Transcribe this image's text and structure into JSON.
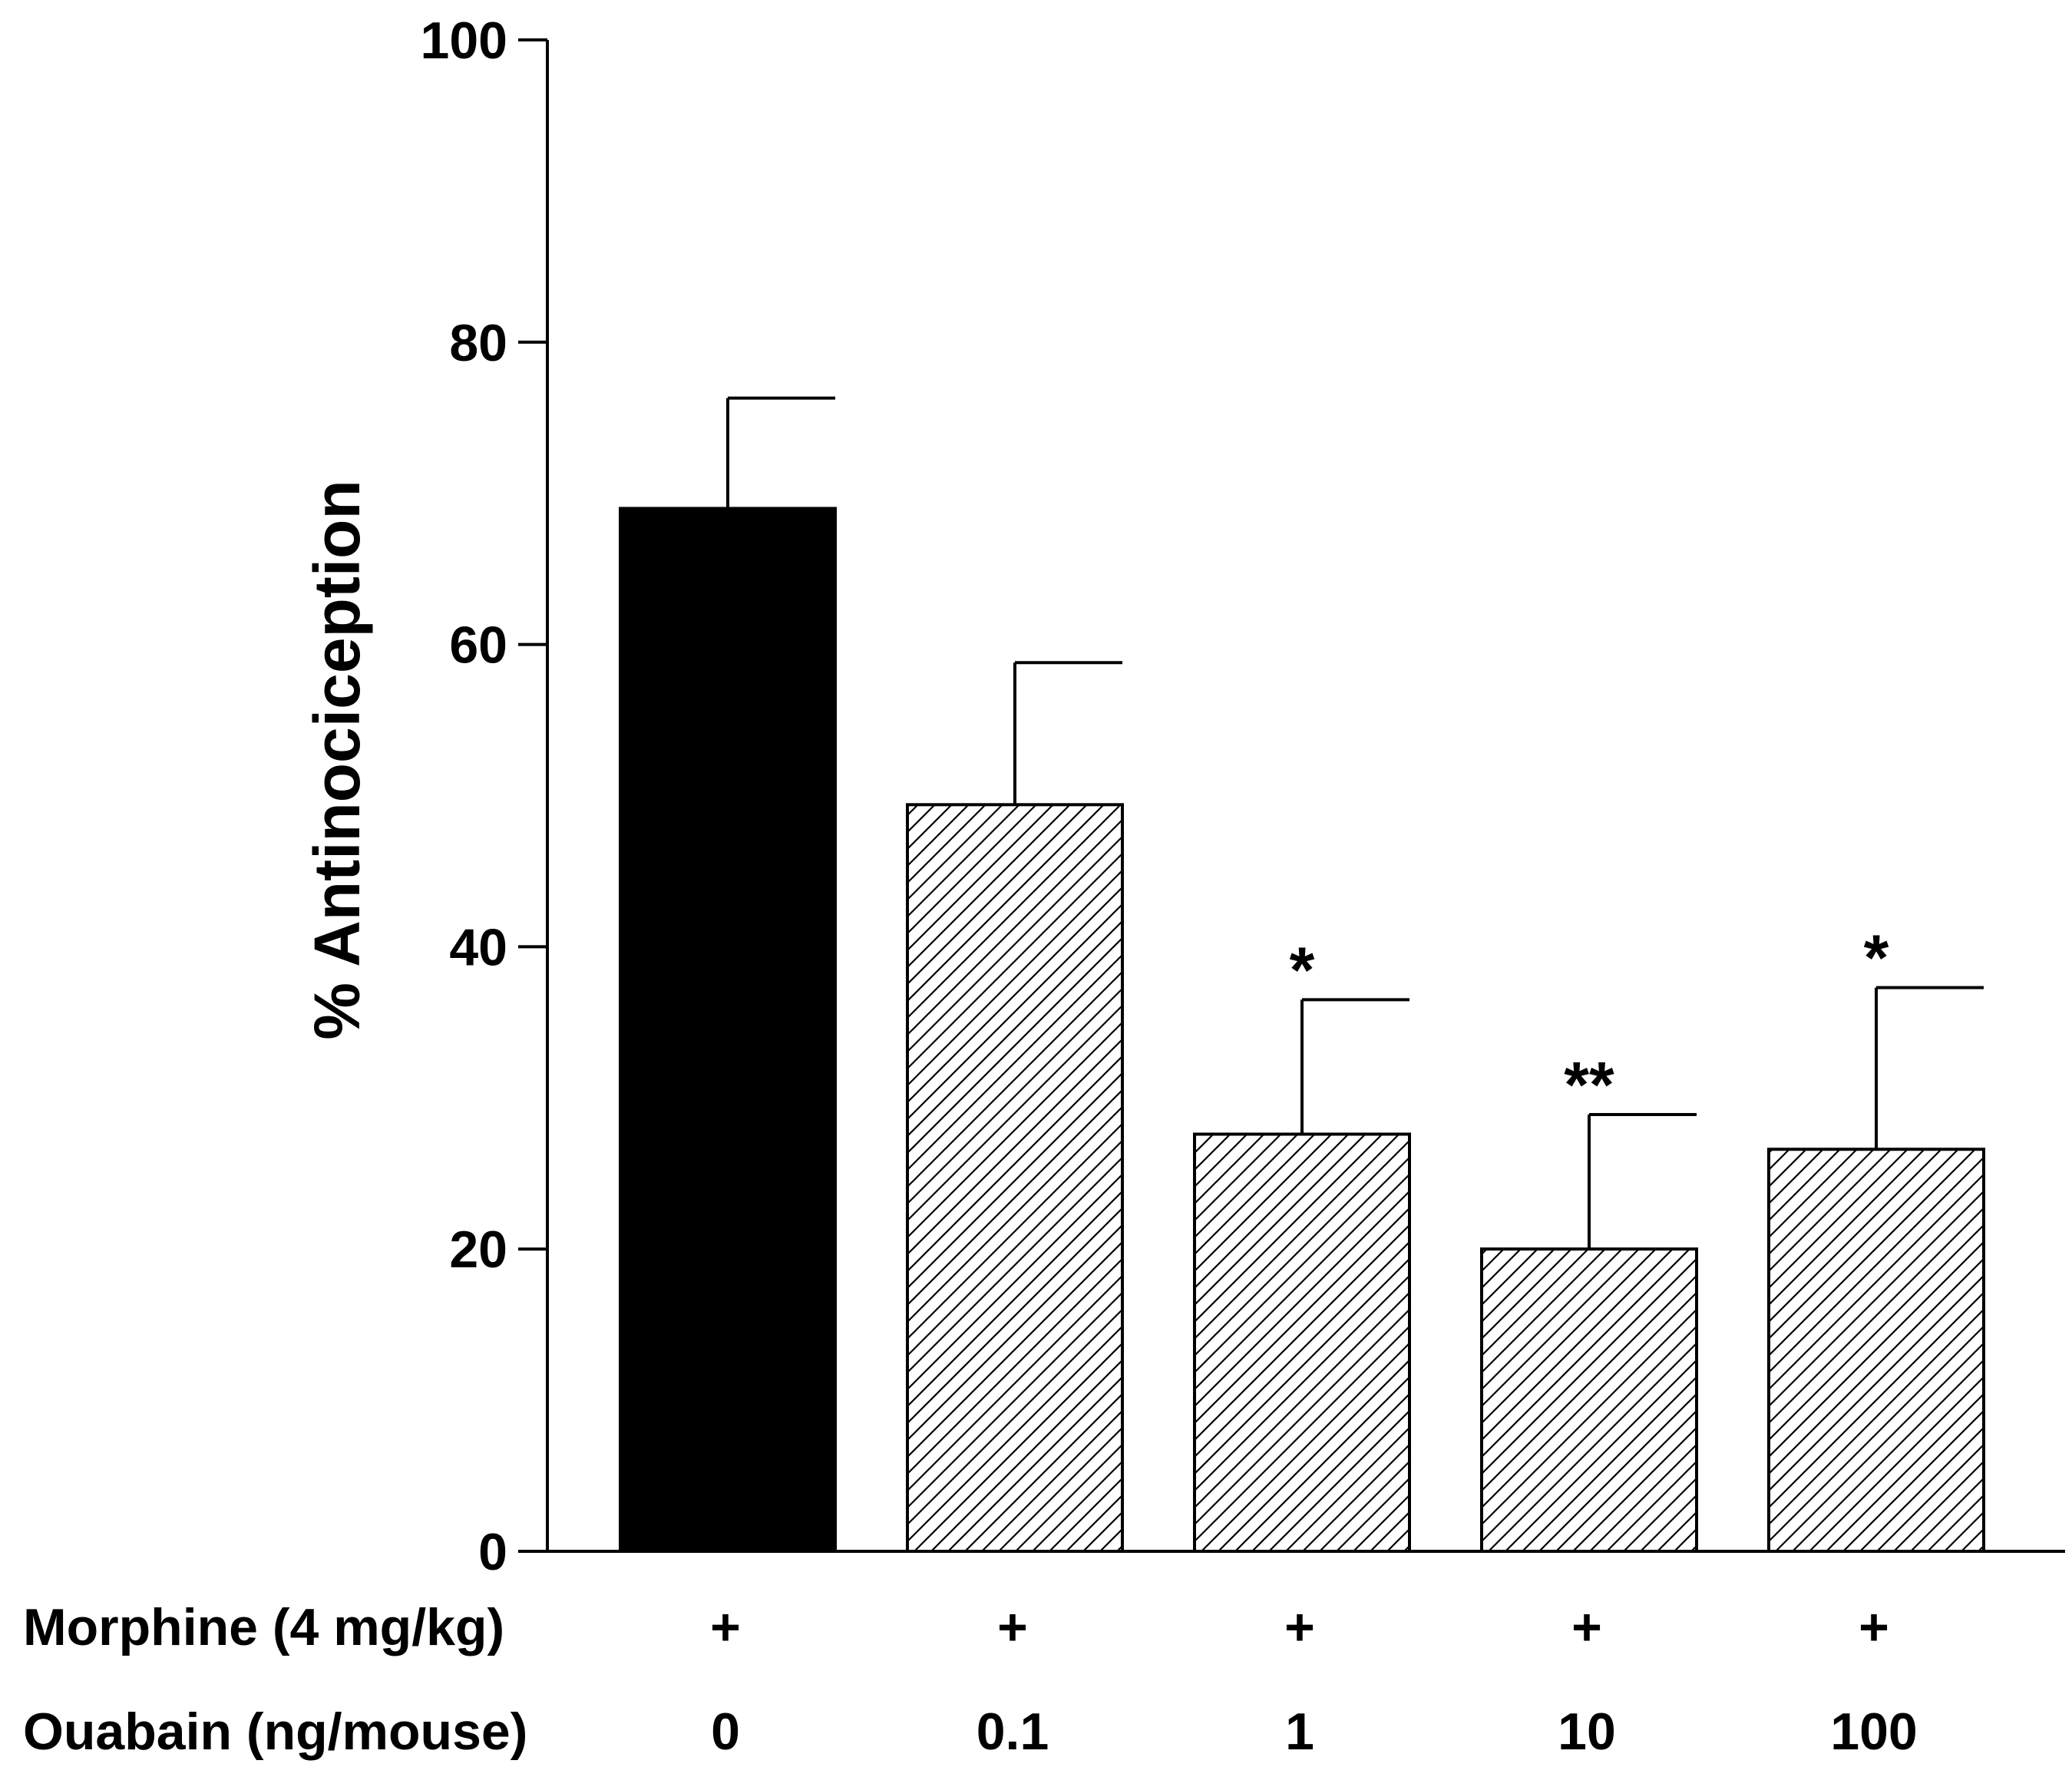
{
  "chart_data": {
    "type": "bar",
    "title": "",
    "ylabel": "% Antinociception",
    "xlabel": "",
    "ylim": [
      0,
      100
    ],
    "yticks": [
      0,
      20,
      40,
      60,
      80,
      100
    ],
    "yticklabels": [
      "0",
      "20",
      "40",
      "60",
      "80",
      "100"
    ],
    "grid": false,
    "legend": "none",
    "rows": [
      {
        "label": "Morphine (4 mg/kg)",
        "values": [
          "+",
          "+",
          "+",
          "+",
          "+"
        ]
      },
      {
        "label": "Ouabain (ng/mouse)",
        "values": [
          "0",
          "0.1",
          "1",
          "10",
          "100"
        ]
      }
    ],
    "categories": [
      "0",
      "0.1",
      "1",
      "10",
      "100"
    ],
    "values": [
      69.0,
      49.4,
      27.6,
      20.0,
      26.6
    ],
    "errors": [
      7.3,
      9.4,
      8.9,
      8.9,
      10.7
    ],
    "significance": [
      "",
      "",
      "*",
      "**",
      "*"
    ],
    "fills": [
      "solid",
      "hatched",
      "hatched",
      "hatched",
      "hatched"
    ],
    "colors": {
      "bar_solid": "#000000",
      "hatch": "#000000",
      "axis": "#000000",
      "background": "#ffffff"
    }
  }
}
